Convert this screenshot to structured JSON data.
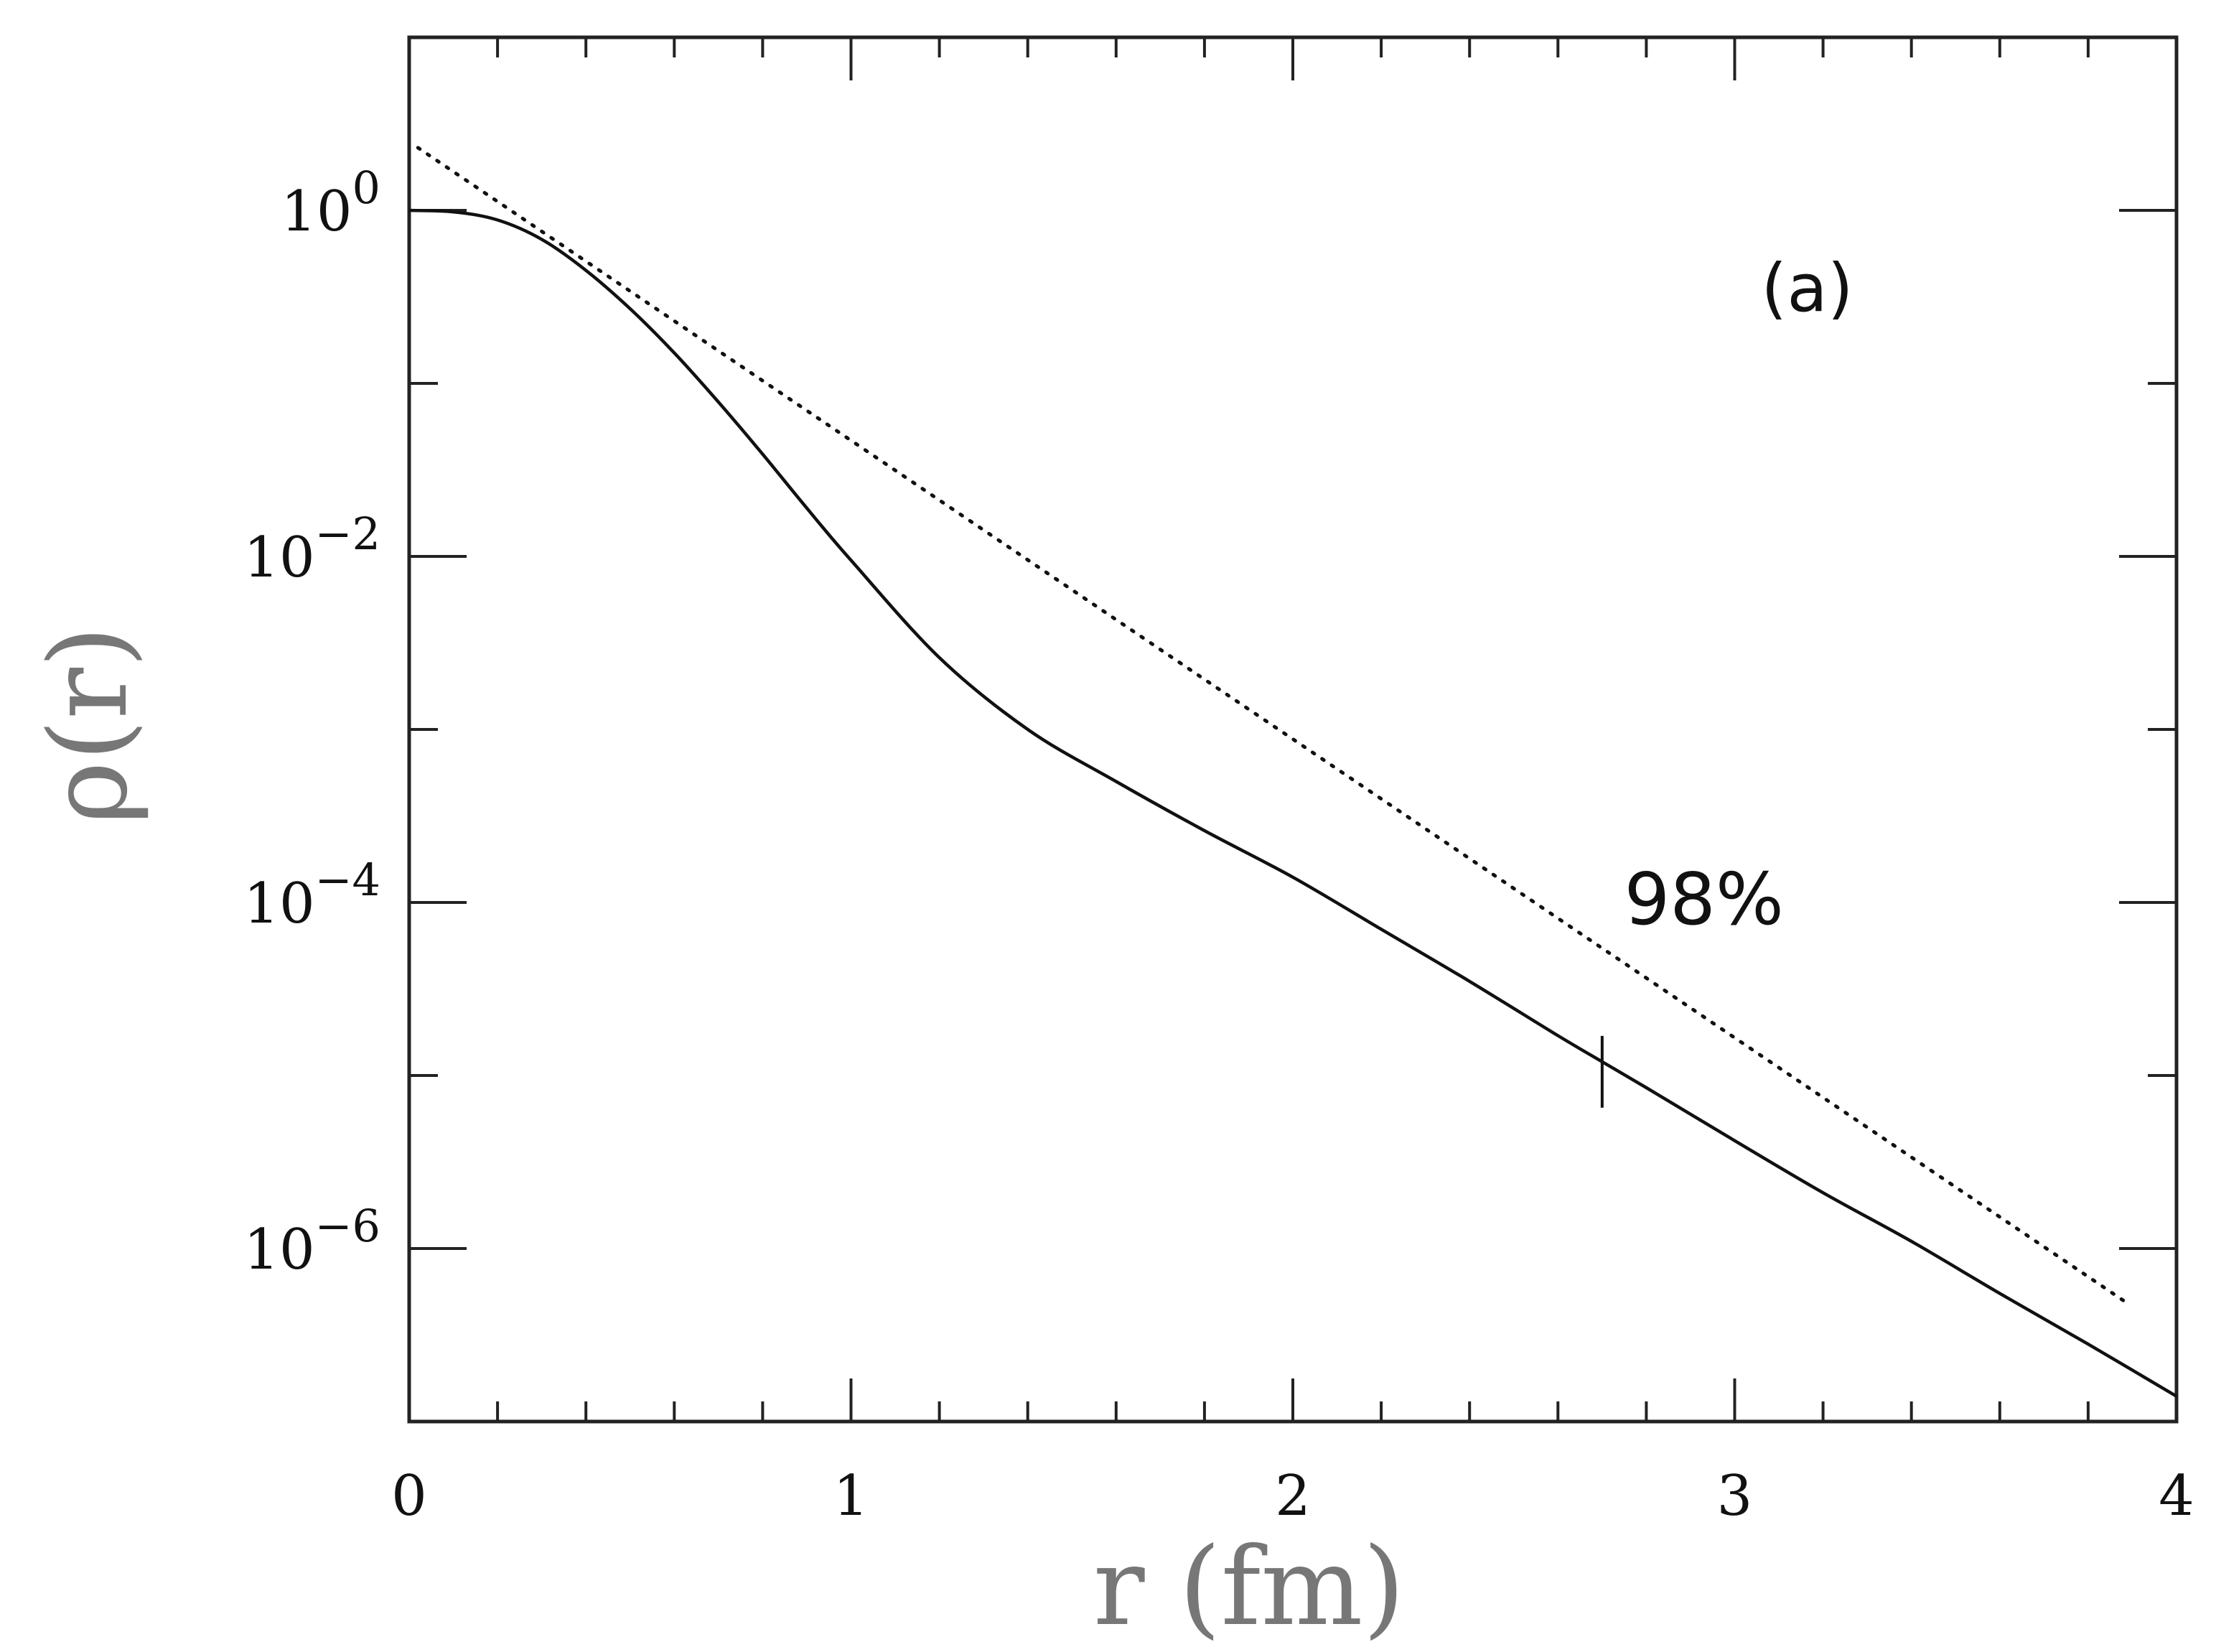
{
  "chart_data": {
    "type": "line",
    "title": "",
    "xlabel": "r  (fm)",
    "ylabel": "ρ(r)",
    "xlim": [
      0,
      4
    ],
    "ylim": [
      1e-07,
      10
    ],
    "yscale": "log",
    "grid": false,
    "x_ticks": [
      {
        "value": 0,
        "label": "0"
      },
      {
        "value": 1,
        "label": "1"
      },
      {
        "value": 2,
        "label": "2"
      },
      {
        "value": 3,
        "label": "3"
      },
      {
        "value": 4,
        "label": "4"
      }
    ],
    "y_ticks": [
      {
        "value": 1,
        "base": "10",
        "exp": "0"
      },
      {
        "value": 0.01,
        "base": "10",
        "exp": "−2"
      },
      {
        "value": 0.0001,
        "base": "10",
        "exp": "−4"
      },
      {
        "value": 1e-06,
        "base": "10",
        "exp": "−6"
      }
    ],
    "series": [
      {
        "style": "solid",
        "x": [
          0,
          0.1,
          0.2,
          0.3,
          0.4,
          0.5,
          0.6,
          0.7,
          0.8,
          0.9,
          1.0,
          1.2,
          1.4,
          1.6,
          1.8,
          2.0,
          2.2,
          2.4,
          2.6,
          2.7,
          2.8,
          3.0,
          3.2,
          3.4,
          3.6,
          3.8,
          4.0
        ],
        "y": [
          1.0,
          0.98,
          0.88,
          0.68,
          0.45,
          0.27,
          0.15,
          0.078,
          0.039,
          0.019,
          0.0095,
          0.0026,
          0.001,
          0.0005,
          0.00026,
          0.00014,
          7e-05,
          3.5e-05,
          1.7e-05,
          1.2e-05,
          8.5e-06,
          4.2e-06,
          2.1e-06,
          1.1e-06,
          5.5e-07,
          2.8e-07,
          1.4e-07
        ]
      },
      {
        "style": "dotted",
        "x": [
          0.02,
          3.88
        ],
        "y": [
          2.3,
          5e-07
        ]
      }
    ],
    "annotations": [
      {
        "text": "(a)",
        "x": 3.06,
        "y": 0.35
      },
      {
        "text": "98%",
        "x": 2.75,
        "y": 0.0001,
        "marker_x": 2.7,
        "marker_y": 1.05e-05
      }
    ]
  }
}
